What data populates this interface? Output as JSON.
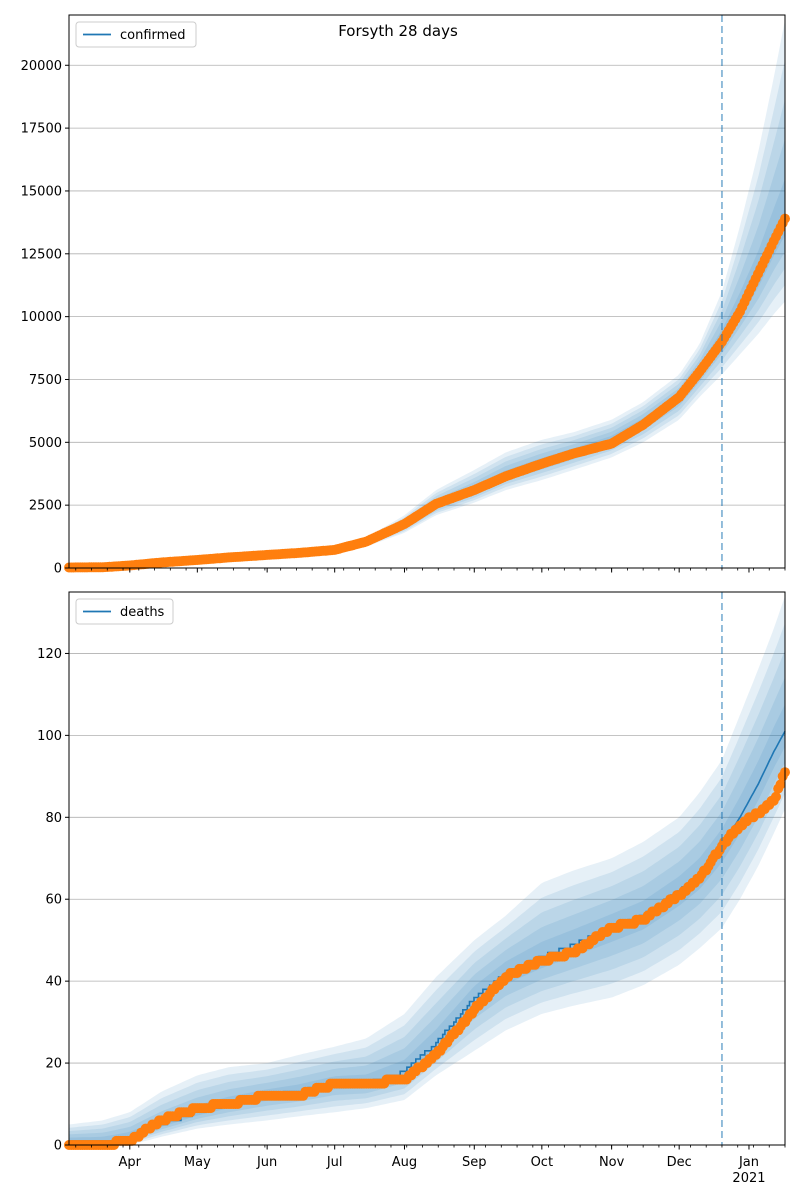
{
  "chart_data": [
    {
      "type": "line",
      "title": "Forsyth 28 days",
      "xlabel": "",
      "ylabel": "",
      "x_ticks": [
        "Apr",
        "May",
        "Jun",
        "Jul",
        "Aug",
        "Sep",
        "Oct",
        "Nov",
        "Dec",
        "Jan"
      ],
      "x_ticks_sub": [
        "",
        "",
        "",
        "",
        "",
        "",
        "",
        "",
        "",
        "2021"
      ],
      "x_tick_dates": [
        "2020-04-01",
        "2020-05-01",
        "2020-06-01",
        "2020-07-01",
        "2020-08-01",
        "2020-09-01",
        "2020-10-01",
        "2020-11-01",
        "2020-12-01",
        "2021-01-01"
      ],
      "xlim": [
        "2020-03-05",
        "2021-01-17"
      ],
      "forecast_start": "2020-12-20",
      "ylim": [
        0,
        22000
      ],
      "y_ticks": [
        0,
        2500,
        5000,
        7500,
        10000,
        12500,
        15000,
        17500,
        20000
      ],
      "y_tick_labels": [
        "0",
        "2500",
        "5000",
        "7500",
        "10000",
        "12500",
        "15000",
        "17500",
        "20000"
      ],
      "grid": "horizontal",
      "legend": "top-left",
      "series": [
        {
          "name": "confirmed",
          "color": "#1f77b4",
          "x": [
            "2020-03-05",
            "2020-03-20",
            "2020-04-01",
            "2020-04-15",
            "2020-05-01",
            "2020-05-15",
            "2020-06-01",
            "2020-06-15",
            "2020-07-01",
            "2020-07-15",
            "2020-08-01",
            "2020-08-15",
            "2020-09-01",
            "2020-09-15",
            "2020-10-01",
            "2020-10-15",
            "2020-11-01",
            "2020-11-15",
            "2020-12-01",
            "2020-12-10",
            "2020-12-20",
            "2020-12-28",
            "2021-01-05",
            "2021-01-12",
            "2021-01-17"
          ],
          "values": [
            30,
            40,
            100,
            230,
            330,
            430,
            520,
            600,
            700,
            1000,
            1700,
            2500,
            3100,
            3700,
            4200,
            4600,
            5100,
            5800,
            6800,
            7800,
            9100,
            10300,
            11600,
            13000,
            13900
          ],
          "band_upper": [
            60,
            70,
            150,
            300,
            400,
            500,
            600,
            700,
            800,
            1200,
            2100,
            3100,
            3900,
            4600,
            5100,
            5400,
            5900,
            6600,
            7700,
            8900,
            11000,
            13600,
            16500,
            19500,
            21800
          ],
          "band_lower": [
            0,
            10,
            60,
            160,
            260,
            360,
            440,
            500,
            600,
            850,
            1400,
            2100,
            2600,
            3100,
            3500,
            3900,
            4400,
            5000,
            5900,
            6800,
            7700,
            8500,
            9300,
            10100,
            10600
          ]
        }
      ],
      "observed": {
        "color": "#ff7f0e",
        "x": [
          "2020-03-05",
          "2020-03-20",
          "2020-04-01",
          "2020-04-15",
          "2020-05-01",
          "2020-05-15",
          "2020-06-01",
          "2020-06-15",
          "2020-07-01",
          "2020-07-15",
          "2020-08-01",
          "2020-08-15",
          "2020-09-01",
          "2020-09-15",
          "2020-10-01",
          "2020-10-15",
          "2020-11-01",
          "2020-11-15",
          "2020-12-01",
          "2020-12-10",
          "2020-12-20",
          "2020-12-28",
          "2021-01-05",
          "2021-01-12",
          "2021-01-17"
        ],
        "values": [
          20,
          30,
          100,
          220,
          320,
          420,
          520,
          600,
          720,
          1050,
          1750,
          2550,
          3100,
          3650,
          4150,
          4550,
          4950,
          5700,
          6800,
          7800,
          9000,
          10200,
          11700,
          13000,
          13900
        ]
      }
    },
    {
      "type": "line",
      "title": "",
      "xlabel": "",
      "ylabel": "",
      "x_ticks": [
        "Apr",
        "May",
        "Jun",
        "Jul",
        "Aug",
        "Sep",
        "Oct",
        "Nov",
        "Dec",
        "Jan"
      ],
      "x_ticks_sub": [
        "",
        "",
        "",
        "",
        "",
        "",
        "",
        "",
        "",
        "2021"
      ],
      "x_tick_dates": [
        "2020-04-01",
        "2020-05-01",
        "2020-06-01",
        "2020-07-01",
        "2020-08-01",
        "2020-09-01",
        "2020-10-01",
        "2020-11-01",
        "2020-12-01",
        "2021-01-01"
      ],
      "xlim": [
        "2020-03-05",
        "2021-01-17"
      ],
      "forecast_start": "2020-12-20",
      "ylim": [
        0,
        135
      ],
      "y_ticks": [
        0,
        20,
        40,
        60,
        80,
        100,
        120
      ],
      "y_tick_labels": [
        "0",
        "20",
        "40",
        "60",
        "80",
        "100",
        "120"
      ],
      "grid": "horizontal",
      "legend": "top-left",
      "series": [
        {
          "name": "deaths",
          "color": "#1f77b4",
          "x": [
            "2020-03-05",
            "2020-03-20",
            "2020-04-01",
            "2020-04-15",
            "2020-05-01",
            "2020-05-15",
            "2020-06-01",
            "2020-06-15",
            "2020-07-01",
            "2020-07-15",
            "2020-08-01",
            "2020-08-15",
            "2020-09-01",
            "2020-09-15",
            "2020-10-01",
            "2020-10-15",
            "2020-11-01",
            "2020-11-15",
            "2020-12-01",
            "2020-12-10",
            "2020-12-20",
            "2020-12-28",
            "2021-01-05",
            "2021-01-12",
            "2021-01-17"
          ],
          "values": [
            1,
            1,
            2,
            5,
            8,
            10,
            12,
            13,
            15,
            15,
            18,
            25,
            36,
            42,
            46,
            49,
            53,
            56,
            62,
            66,
            73,
            80,
            88,
            96,
            101
          ],
          "band_upper": [
            5,
            6,
            8,
            13,
            17,
            19,
            20,
            22,
            24,
            26,
            32,
            41,
            50,
            56,
            64,
            67,
            70,
            74,
            80,
            86,
            94,
            105,
            116,
            126,
            134
          ],
          "band_lower": [
            0,
            0,
            0,
            2,
            4,
            5,
            6,
            7,
            8,
            9,
            11,
            17,
            23,
            28,
            32,
            34,
            36,
            39,
            44,
            48,
            53,
            60,
            68,
            76,
            82
          ]
        }
      ],
      "observed": {
        "color": "#ff7f0e",
        "x": [
          "2020-03-05",
          "2020-03-20",
          "2020-04-01",
          "2020-04-15",
          "2020-05-01",
          "2020-05-15",
          "2020-06-01",
          "2020-06-15",
          "2020-07-01",
          "2020-07-15",
          "2020-08-01",
          "2020-08-15",
          "2020-09-01",
          "2020-09-15",
          "2020-10-01",
          "2020-10-15",
          "2020-11-01",
          "2020-11-15",
          "2020-12-01",
          "2020-12-10",
          "2020-12-20",
          "2020-12-28",
          "2021-01-05",
          "2021-01-12",
          "2021-01-17"
        ],
        "values": [
          0,
          0,
          1,
          6,
          9,
          10,
          12,
          12,
          15,
          15,
          16,
          22,
          33,
          41,
          45,
          47,
          53,
          55,
          61,
          65,
          73,
          78,
          81,
          84,
          91
        ]
      }
    }
  ]
}
